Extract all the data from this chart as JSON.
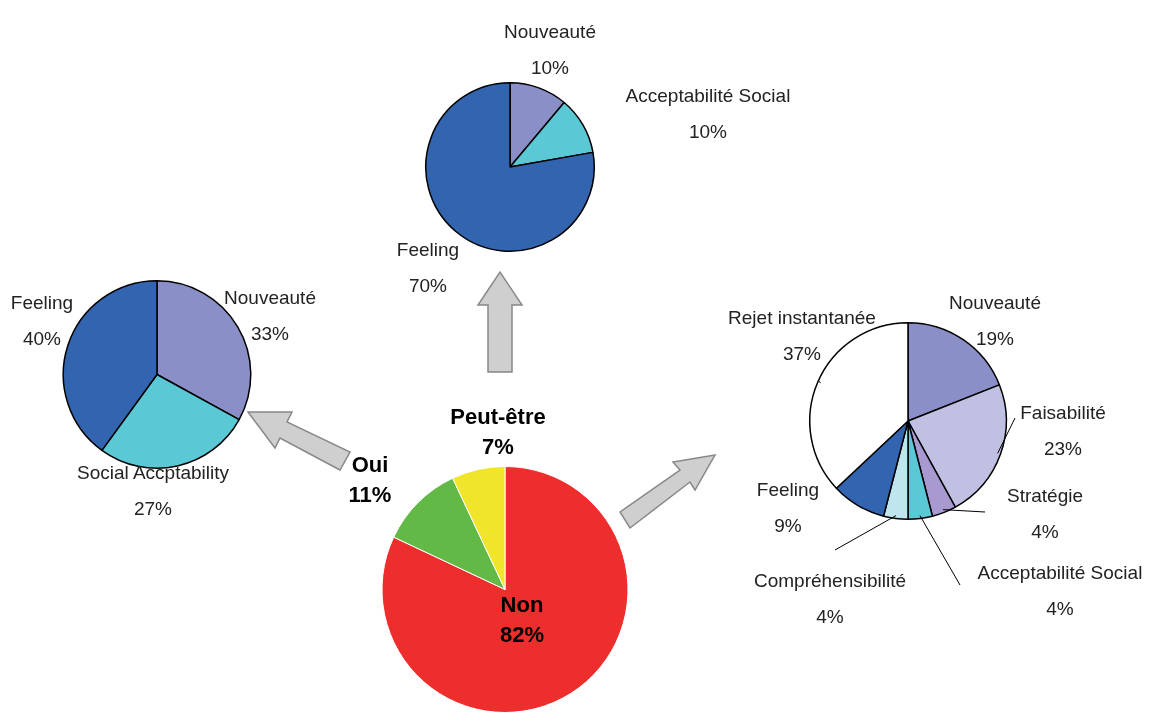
{
  "chart_data": [
    {
      "type": "pie",
      "categories": [
        "Nouveauté",
        "Acceptabilité Social",
        "Feeling"
      ],
      "values": [
        10,
        10,
        70
      ],
      "colors": [
        "#8a8fc8",
        "#5bc8d6",
        "#3264b0"
      ],
      "value_labels": [
        "10%",
        "10%",
        "70%"
      ]
    },
    {
      "type": "pie",
      "categories": [
        "Nouveauté",
        "Social Accptability",
        "Feeling"
      ],
      "values": [
        33,
        27,
        40
      ],
      "colors": [
        "#8a8fc8",
        "#5bc8d6",
        "#3264b0"
      ],
      "value_labels": [
        "33%",
        "27%",
        "40%"
      ]
    },
    {
      "type": "pie",
      "categories": [
        "Nouveauté",
        "Faisabilité",
        "Stratégie",
        "Acceptabilité Social",
        "Compréhensibilité",
        "Feeling",
        "Rejet instantanée"
      ],
      "values": [
        19,
        23,
        4,
        4,
        4,
        9,
        37
      ],
      "colors": [
        "#8a8fc8",
        "#c0c0e2",
        "#a89ad0",
        "#5bc8d6",
        "#bfe6ee",
        "#3264b0",
        "#ffffff"
      ],
      "value_labels": [
        "19%",
        "23%",
        "4%",
        "4%",
        "4%",
        "9%",
        "37%"
      ]
    },
    {
      "type": "pie",
      "categories": [
        "Non",
        "Oui",
        "Peut-être"
      ],
      "values": [
        82,
        11,
        7
      ],
      "colors": [
        "#ee2d2d",
        "#62b946",
        "#f0e52a"
      ],
      "value_labels": [
        "82%",
        "11%",
        "7%"
      ]
    }
  ]
}
